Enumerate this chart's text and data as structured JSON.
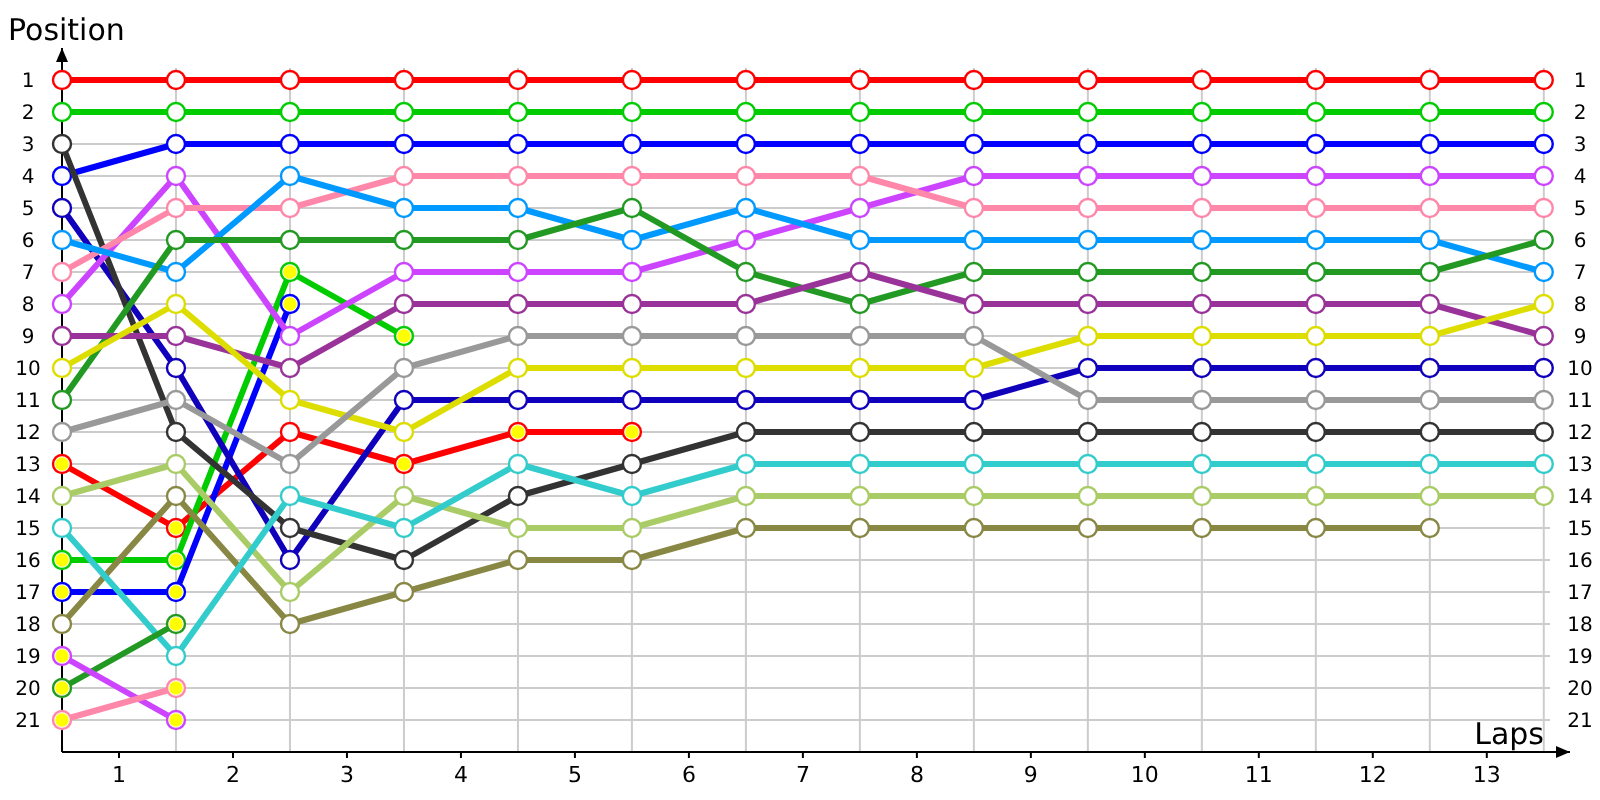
{
  "chart_data": {
    "type": "line",
    "xlabel": "Laps",
    "ylabel": "Position",
    "marker": "circle",
    "grid": true,
    "x": [
      0,
      1,
      2,
      3,
      4,
      5,
      6,
      7,
      8,
      9,
      10,
      11,
      12,
      13
    ],
    "xlim": [
      0,
      13.23
    ],
    "xticks": [
      {
        "value": 0,
        "label": null
      },
      {
        "value": 0.5,
        "label": "1"
      },
      {
        "value": 1,
        "label": null
      },
      {
        "value": 1.5,
        "label": "2"
      },
      {
        "value": 2,
        "label": null
      },
      {
        "value": 2.5,
        "label": "3"
      },
      {
        "value": 3,
        "label": null
      },
      {
        "value": 3.5,
        "label": "4"
      },
      {
        "value": 4,
        "label": null
      },
      {
        "value": 4.5,
        "label": "5"
      },
      {
        "value": 5,
        "label": null
      },
      {
        "value": 5.5,
        "label": "6"
      },
      {
        "value": 6,
        "label": null
      },
      {
        "value": 6.5,
        "label": "7"
      },
      {
        "value": 7,
        "label": null
      },
      {
        "value": 7.5,
        "label": "8"
      },
      {
        "value": 8,
        "label": null
      },
      {
        "value": 8.5,
        "label": "9"
      },
      {
        "value": 9,
        "label": null
      },
      {
        "value": 9.5,
        "label": "10"
      },
      {
        "value": 10,
        "label": null
      },
      {
        "value": 10.5,
        "label": "11"
      },
      {
        "value": 11,
        "label": null
      },
      {
        "value": 11.5,
        "label": "12"
      },
      {
        "value": 12,
        "label": null
      },
      {
        "value": 12.5,
        "label": "13"
      },
      {
        "value": 13,
        "label": null
      }
    ],
    "ylim": [
      22,
      0
    ],
    "yticks": [
      1,
      2,
      3,
      4,
      5,
      6,
      7,
      8,
      9,
      10,
      11,
      12,
      13,
      14,
      15,
      16,
      17,
      18,
      19,
      20,
      21
    ],
    "y2lim": [
      22,
      0
    ],
    "y2ticks": [
      1,
      2,
      3,
      4,
      5,
      6,
      7,
      8,
      9,
      10,
      11,
      12,
      13,
      14,
      15,
      16,
      17,
      18,
      19,
      20,
      21
    ],
    "series": [
      {
        "color": "#ff0000",
        "values": [
          1,
          1,
          1,
          1,
          1,
          1,
          1,
          1,
          1,
          1,
          1,
          1,
          1,
          1
        ]
      },
      {
        "color": "#ff0000",
        "values": [
          13,
          15,
          12,
          13,
          12,
          12,
          null,
          null,
          null,
          null,
          null,
          null,
          null,
          null
        ]
      },
      {
        "color": "#00cc00",
        "values": [
          2,
          2,
          2,
          2,
          2,
          2,
          2,
          2,
          2,
          2,
          2,
          2,
          2,
          2
        ]
      },
      {
        "color": "#00cc00",
        "values": [
          16,
          16,
          7,
          9,
          null,
          null,
          null,
          null,
          null,
          null,
          null,
          null,
          null,
          null
        ]
      },
      {
        "color": "#0000ff",
        "values": [
          4,
          3,
          3,
          3,
          3,
          3,
          3,
          3,
          3,
          3,
          3,
          3,
          3,
          3
        ]
      },
      {
        "color": "#0000ff",
        "values": [
          17,
          17,
          8,
          null,
          null,
          null,
          null,
          null,
          null,
          null,
          null,
          null,
          null,
          null
        ]
      },
      {
        "color": "#1100bb",
        "values": [
          5,
          10,
          16,
          11,
          11,
          11,
          11,
          11,
          11,
          10,
          10,
          10,
          10,
          10
        ]
      },
      {
        "color": "#333333",
        "values": [
          3,
          12,
          15,
          16,
          14,
          13,
          12,
          12,
          12,
          12,
          12,
          12,
          12,
          12
        ]
      },
      {
        "color": "#cc44ff",
        "values": [
          8,
          4,
          9,
          7,
          7,
          7,
          6,
          5,
          4,
          4,
          4,
          4,
          4,
          4
        ]
      },
      {
        "color": "#ff88aa",
        "values": [
          7,
          5,
          5,
          4,
          4,
          4,
          4,
          4,
          5,
          5,
          5,
          5,
          5,
          5
        ]
      },
      {
        "color": "#0099ff",
        "values": [
          6,
          7,
          4,
          5,
          5,
          6,
          5,
          6,
          6,
          6,
          6,
          6,
          6,
          7
        ]
      },
      {
        "color": "#229922",
        "values": [
          11,
          6,
          6,
          6,
          6,
          5,
          7,
          8,
          7,
          7,
          7,
          7,
          7,
          6
        ]
      },
      {
        "color": "#993399",
        "values": [
          9,
          9,
          10,
          8,
          8,
          8,
          8,
          7,
          8,
          8,
          8,
          8,
          8,
          9
        ]
      },
      {
        "color": "#dddd00",
        "values": [
          10,
          8,
          11,
          12,
          10,
          10,
          10,
          10,
          10,
          9,
          9,
          9,
          9,
          8
        ]
      },
      {
        "color": "#999999",
        "values": [
          12,
          11,
          13,
          10,
          9,
          9,
          9,
          9,
          9,
          11,
          11,
          11,
          11,
          11
        ]
      },
      {
        "color": "#aacc66",
        "values": [
          14,
          13,
          17,
          14,
          15,
          15,
          14,
          14,
          14,
          14,
          14,
          14,
          14,
          14
        ]
      },
      {
        "color": "#888844",
        "values": [
          18,
          14,
          18,
          17,
          16,
          16,
          15,
          15,
          15,
          15,
          15,
          15,
          15,
          null
        ]
      },
      {
        "color": "#33cccc",
        "values": [
          15,
          19,
          14,
          15,
          13,
          14,
          13,
          13,
          13,
          13,
          13,
          13,
          13,
          13
        ]
      },
      {
        "color": "#229922",
        "values": [
          20,
          18,
          null,
          null,
          null,
          null,
          null,
          null,
          null,
          null,
          null,
          null,
          null,
          null
        ]
      },
      {
        "color": "#cc44ff",
        "values": [
          19,
          21,
          null,
          null,
          null,
          null,
          null,
          null,
          null,
          null,
          null,
          null,
          null,
          null
        ]
      },
      {
        "color": "#ff88aa",
        "values": [
          21,
          20,
          null,
          null,
          null,
          null,
          null,
          null,
          null,
          null,
          null,
          null,
          null,
          null
        ]
      },
      {
        "type": "scatter",
        "color": "#ffff00",
        "x": [
          0,
          1,
          3,
          4,
          5,
          0,
          1,
          2,
          3,
          0,
          1,
          2,
          0,
          1,
          0,
          1,
          0,
          1
        ],
        "values": [
          13,
          15,
          13,
          12,
          12,
          16,
          16,
          7,
          9,
          17,
          17,
          8,
          20,
          18,
          19,
          21,
          21,
          20
        ]
      }
    ]
  }
}
